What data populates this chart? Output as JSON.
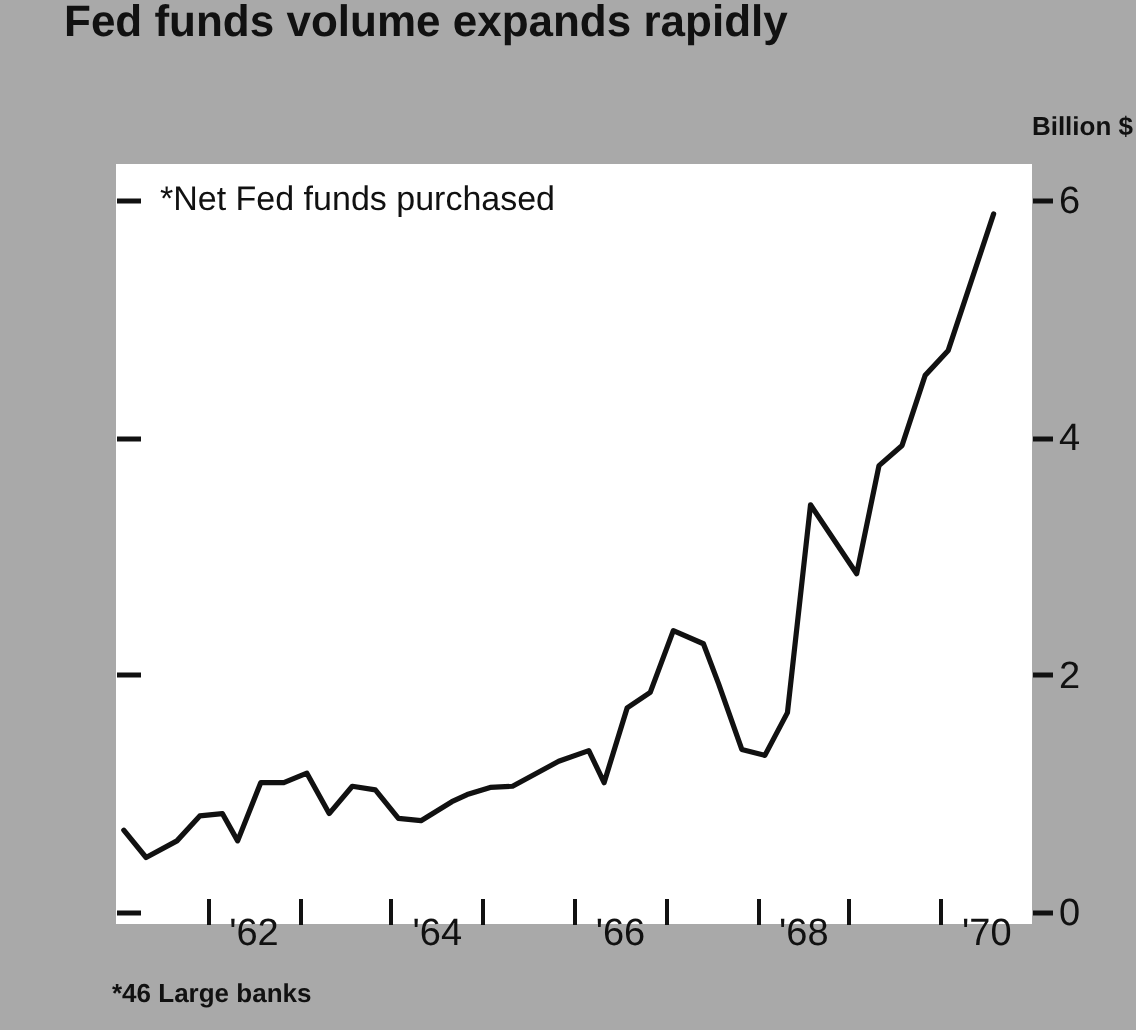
{
  "chart_data": {
    "type": "line",
    "title": "Fed funds volume expands rapidly",
    "ylabel": "Billion $",
    "annotations": [
      "*Net Fed  funds purchased",
      "*46 Large banks"
    ],
    "x": [
      "1961-02",
      "1961-05",
      "1961-09",
      "1961-12",
      "1962-03",
      "1962-05",
      "1962-08",
      "1962-11",
      "1963-02",
      "1963-05",
      "1963-08",
      "1963-11",
      "1964-02",
      "1964-05",
      "1964-09",
      "1964-11",
      "1965-02",
      "1965-05",
      "1965-11",
      "1966-03",
      "1966-05",
      "1966-08",
      "1966-11",
      "1967-02",
      "1967-06",
      "1967-08",
      "1967-11",
      "1968-02",
      "1968-05",
      "1968-08",
      "1969-02",
      "1969-05",
      "1969-08",
      "1969-11",
      "1970-02",
      "1970-08"
    ],
    "series": [
      {
        "color": "#111111",
        "values": [
          0.69,
          0.46,
          0.6,
          0.81,
          0.83,
          0.6,
          1.09,
          1.09,
          1.17,
          0.83,
          1.06,
          1.03,
          0.79,
          0.77,
          0.93,
          0.99,
          1.05,
          1.06,
          1.27,
          1.36,
          1.09,
          1.72,
          1.85,
          2.37,
          2.26,
          1.92,
          1.37,
          1.32,
          1.68,
          3.43,
          2.85,
          3.76,
          3.93,
          4.52,
          4.73,
          5.88
        ]
      }
    ],
    "xlim": [
      "1961-01",
      "1971-01"
    ],
    "xticks": [
      {
        "value": "1962-01",
        "label": null
      },
      {
        "value": "1962-07",
        "label": "'62"
      },
      {
        "value": "1963-01",
        "label": null
      },
      {
        "value": "1964-01",
        "label": null
      },
      {
        "value": "1964-07",
        "label": "'64"
      },
      {
        "value": "1965-01",
        "label": null
      },
      {
        "value": "1966-01",
        "label": null
      },
      {
        "value": "1966-07",
        "label": "'66"
      },
      {
        "value": "1967-01",
        "label": null
      },
      {
        "value": "1968-01",
        "label": null
      },
      {
        "value": "1968-07",
        "label": "'68"
      },
      {
        "value": "1969-01",
        "label": null
      },
      {
        "value": "1970-01",
        "label": null
      },
      {
        "value": "1970-07",
        "label": "'70"
      }
    ],
    "ylim": [
      -0.1,
      6.3
    ],
    "yticks": [
      0,
      2,
      4,
      6
    ],
    "grid": false,
    "legend": false,
    "marker": "none",
    "line_style": "solid"
  }
}
